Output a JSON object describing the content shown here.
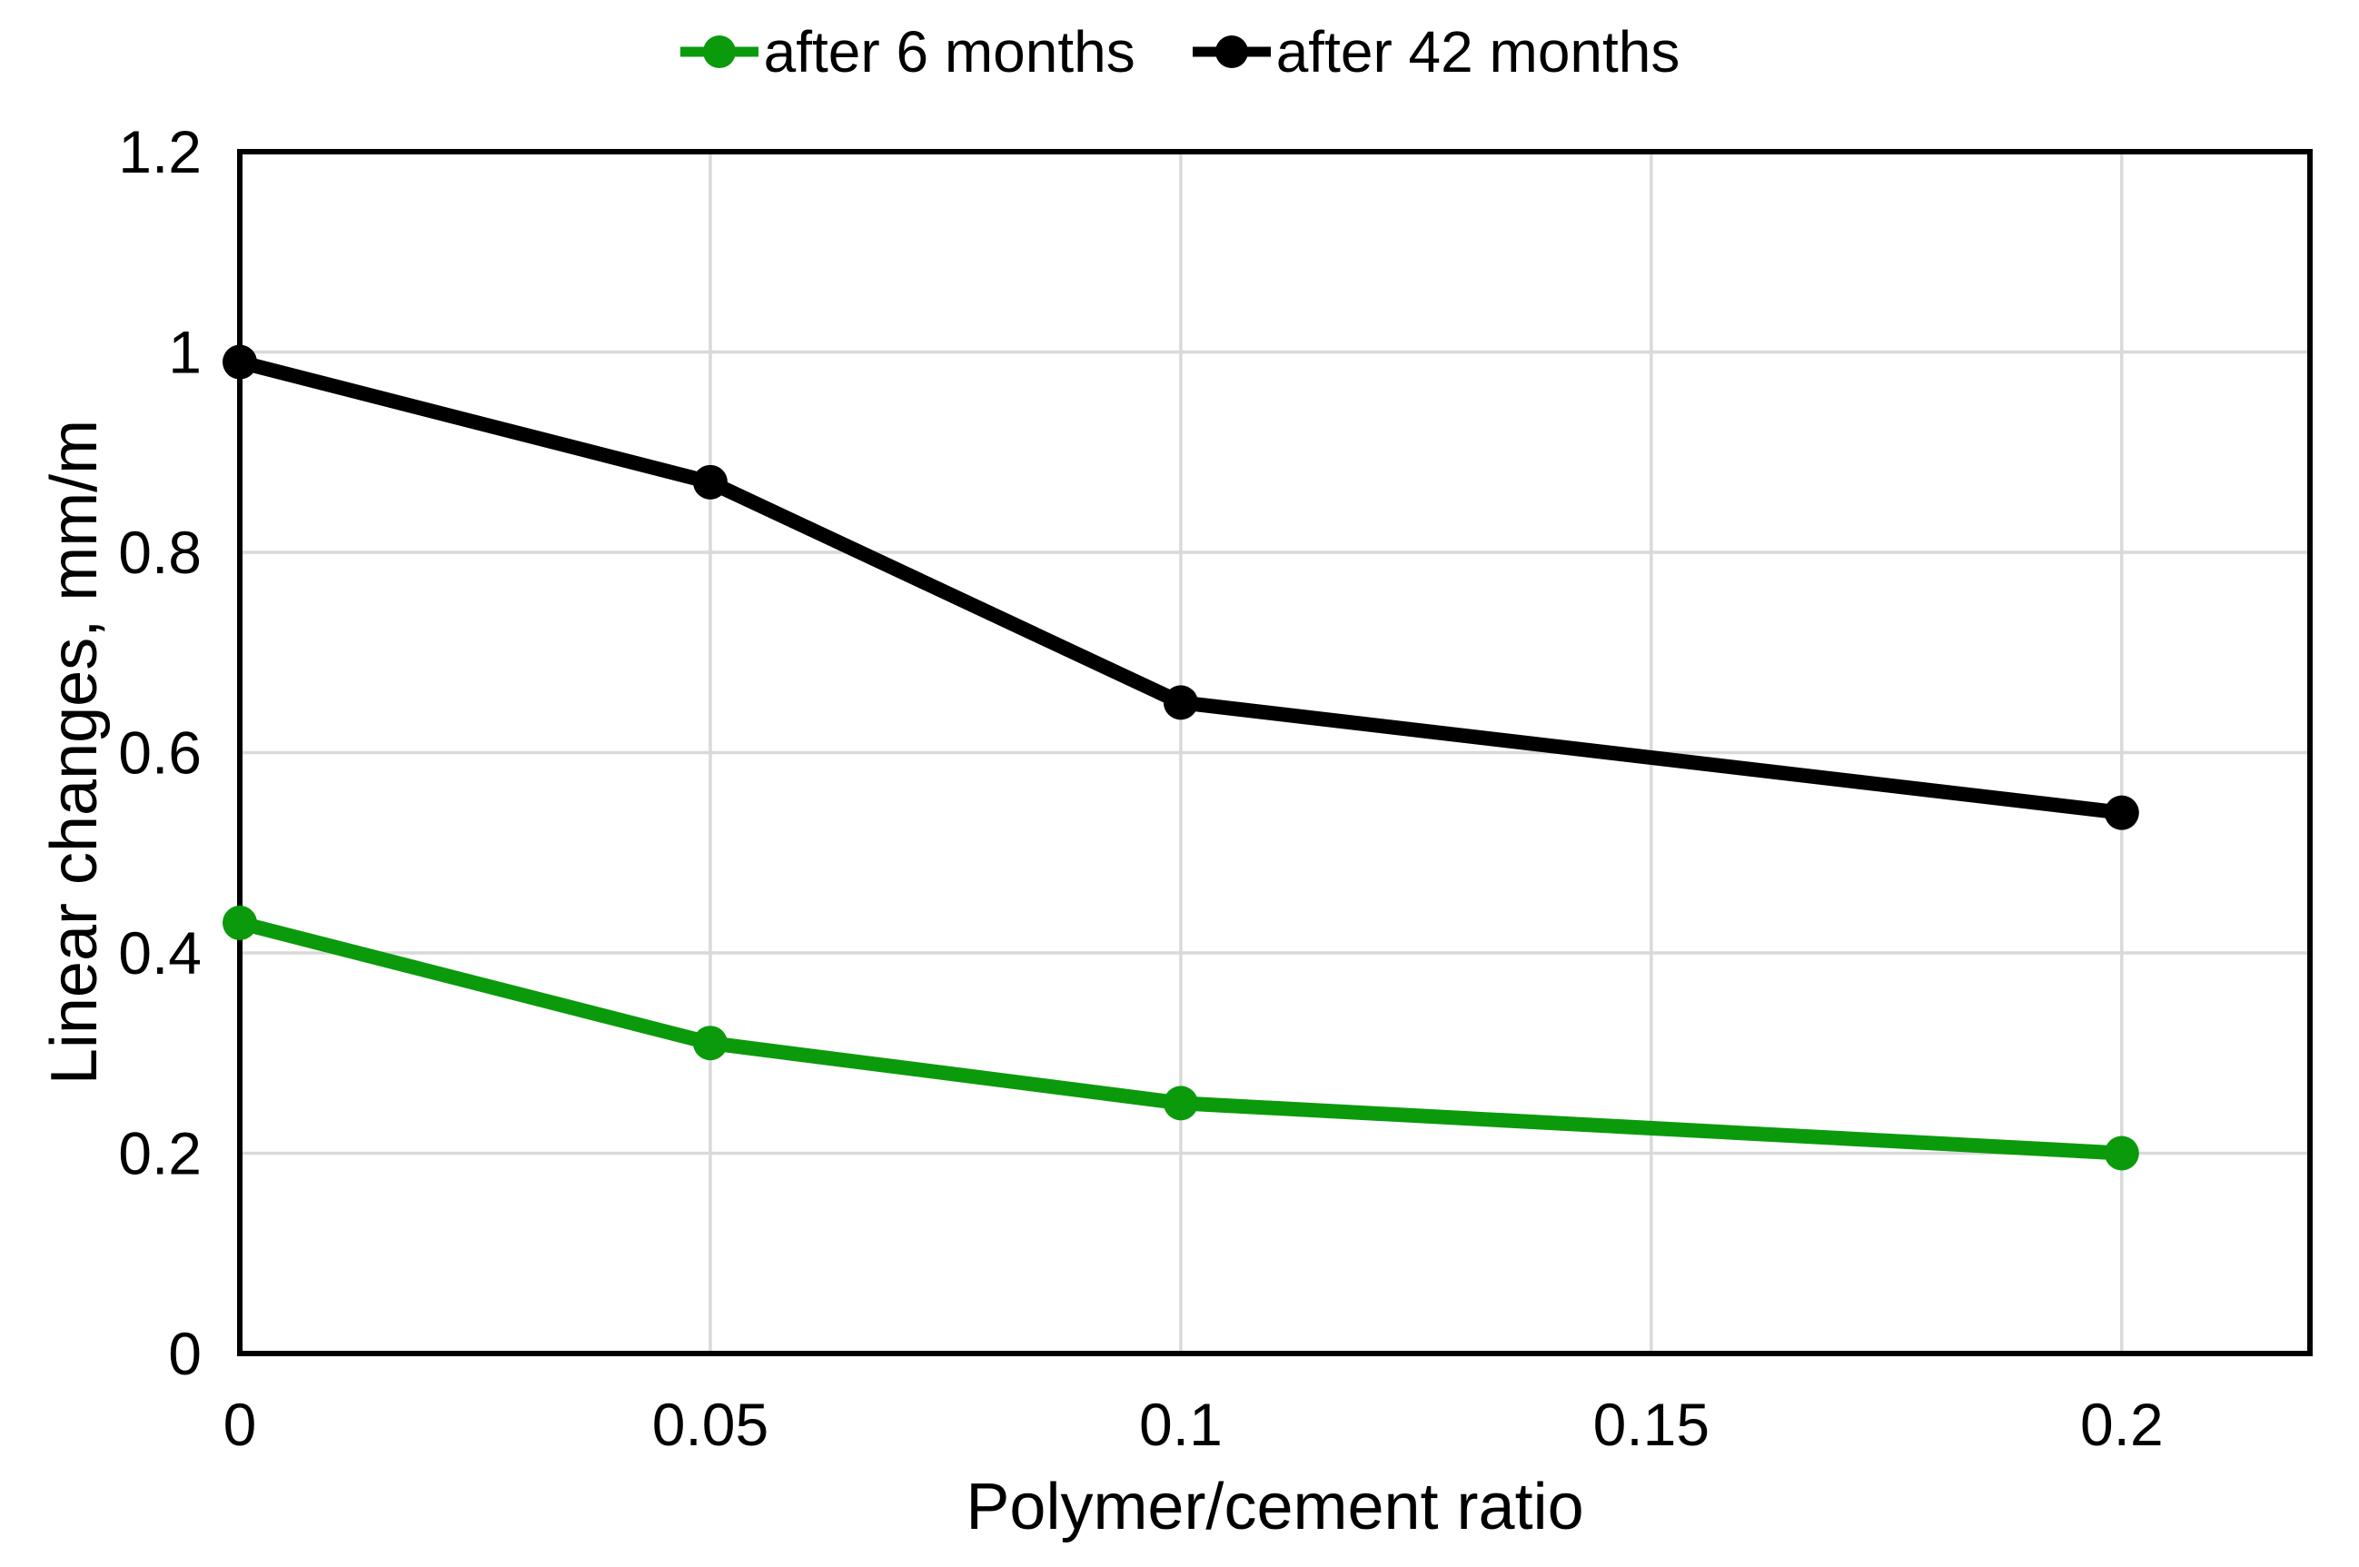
{
  "chart_data": {
    "type": "line",
    "xlabel": "Polymer/cement ratio",
    "ylabel": "Linear changes, mm/m",
    "x": [
      0,
      0.05,
      0.1,
      0.2
    ],
    "series": [
      {
        "name": "after 6 months",
        "color": "#0b9a0b",
        "values": [
          0.43,
          0.31,
          0.25,
          0.2
        ]
      },
      {
        "name": "after 42 months",
        "color": "#000000",
        "values": [
          0.99,
          0.87,
          0.65,
          0.54
        ]
      }
    ],
    "xticks": {
      "values": [
        0,
        0.05,
        0.1,
        0.15,
        0.2
      ],
      "labels": [
        "0",
        "0.05",
        "0.1",
        "0.15",
        "0.2"
      ]
    },
    "yticks": {
      "values": [
        0,
        0.2,
        0.4,
        0.6,
        0.8,
        1.0,
        1.2
      ],
      "labels": [
        "0",
        "0.2",
        "0.4",
        "0.6",
        "0.8",
        "1",
        "1.2"
      ]
    },
    "xlim": [
      0,
      0.22
    ],
    "ylim": [
      0,
      1.2
    ],
    "grid": true,
    "legend_position": "top-center",
    "colors": {
      "gridline": "#d9d9d9",
      "axis": "#000000",
      "background": "#ffffff",
      "text": "#000000"
    }
  }
}
